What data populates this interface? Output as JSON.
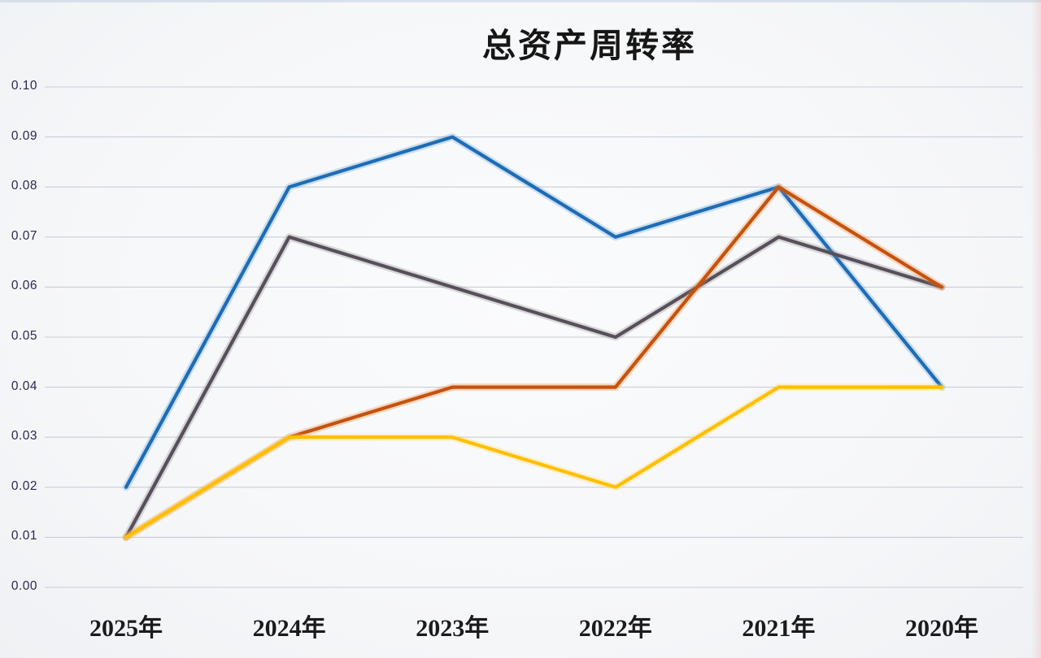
{
  "title": "总资产周转率",
  "chart_data": {
    "type": "line",
    "title": "总资产周转率",
    "categories": [
      "2025年",
      "2024年",
      "2023年",
      "2022年",
      "2021年",
      "2020年"
    ],
    "series": [
      {
        "name": "series-blue",
        "color": "#1e6cb5",
        "glow": "#5e9fd4",
        "values": [
          0.02,
          0.08,
          0.09,
          0.07,
          0.08,
          0.04
        ]
      },
      {
        "name": "series-gray",
        "color": "#57505a",
        "glow": "#8a8390",
        "values": [
          0.01,
          0.07,
          0.06,
          0.05,
          0.07,
          0.06
        ]
      },
      {
        "name": "series-orange",
        "color": "#c6520e",
        "glow": "#ef8432",
        "values": [
          0.01,
          0.03,
          0.04,
          0.04,
          0.08,
          0.06
        ]
      },
      {
        "name": "series-yellow",
        "color": "#ffbf00",
        "glow": "#ffd85e",
        "values": [
          0.01,
          0.03,
          0.03,
          0.02,
          0.04,
          0.04
        ]
      }
    ],
    "y_ticks": [
      "0.10",
      "0.09",
      "0.08",
      "0.07",
      "0.06",
      "0.05",
      "0.04",
      "0.03",
      "0.02",
      "0.01",
      "0.00"
    ],
    "ylim": [
      0.0,
      0.1
    ],
    "grid": "horizontal",
    "legend_position": "none"
  },
  "colors": {
    "background": "#f6f7f9",
    "gridline": "#c9ced5",
    "tick_label": "#2d2852",
    "category_label": "#1b1b1d",
    "title": "#161616"
  }
}
